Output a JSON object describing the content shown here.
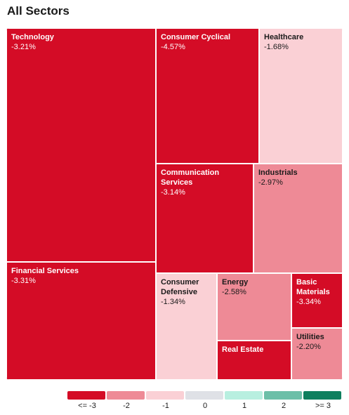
{
  "title": "All Sectors",
  "chart_data": {
    "type": "treemap",
    "title": "All Sectors",
    "sectors": [
      {
        "name": "Technology",
        "change": "-3.21%",
        "value": -3.21
      },
      {
        "name": "Financial Services",
        "change": "-3.31%",
        "value": -3.31
      },
      {
        "name": "Consumer Cyclical",
        "change": "-4.57%",
        "value": -4.57
      },
      {
        "name": "Healthcare",
        "change": "-1.68%",
        "value": -1.68
      },
      {
        "name": "Communication Services",
        "change": "-3.14%",
        "value": -3.14
      },
      {
        "name": "Industrials",
        "change": "-2.97%",
        "value": -2.97
      },
      {
        "name": "Consumer Defensive",
        "change": "-1.34%",
        "value": -1.34
      },
      {
        "name": "Energy",
        "change": "-2.58%",
        "value": -2.58
      },
      {
        "name": "Basic Materials",
        "change": "-3.34%",
        "value": -3.34
      },
      {
        "name": "Utilities",
        "change": "-2.20%",
        "value": -2.2
      },
      {
        "name": "Real Estate",
        "change": "",
        "value": null
      }
    ],
    "legend": [
      {
        "label": "<= -3",
        "color": "#d40c26"
      },
      {
        "label": "-2",
        "color": "#ee8a96"
      },
      {
        "label": "-1",
        "color": "#fad0d5"
      },
      {
        "label": "0",
        "color": "#dfe1e6"
      },
      {
        "label": "1",
        "color": "#b8efe0"
      },
      {
        "label": "2",
        "color": "#6cbfa8"
      },
      {
        "label": ">= 3",
        "color": "#0f7f5e"
      }
    ]
  }
}
